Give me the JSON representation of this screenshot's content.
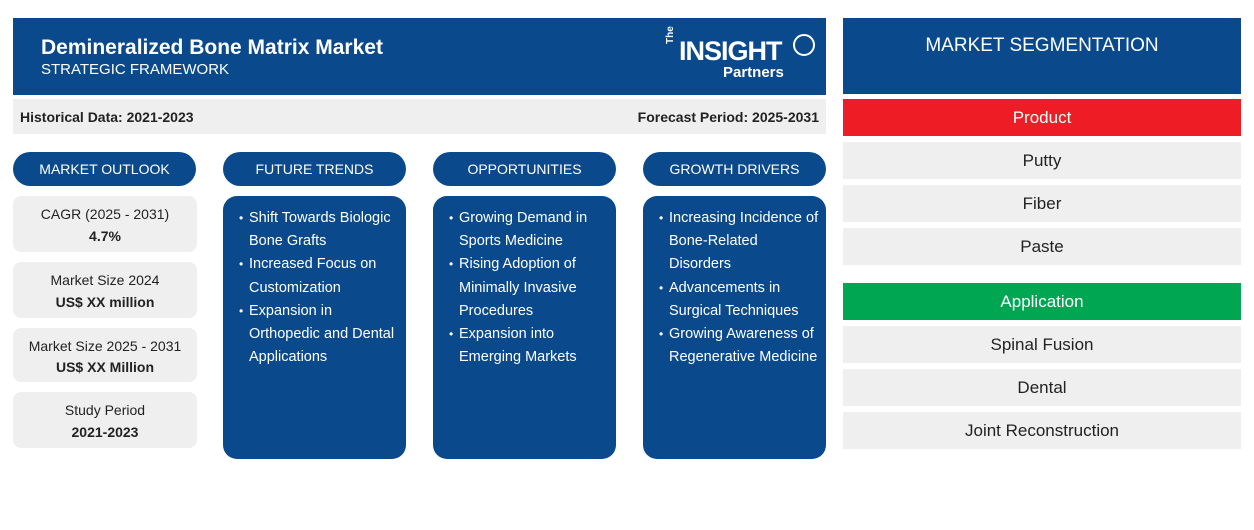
{
  "header": {
    "title": "Demineralized Bone Matrix Market",
    "subtitle": "STRATEGIC FRAMEWORK",
    "logo": {
      "the": "The",
      "insight": "INSIGHT",
      "partners": "Partners"
    }
  },
  "period": {
    "historical": "Historical Data: 2021-2023",
    "forecast": "Forecast Period: 2025-2031"
  },
  "columns": {
    "market_outlook": "MARKET OUTLOOK",
    "future_trends": "FUTURE TRENDS",
    "opportunities": "OPPORTUNITIES",
    "growth_drivers": "GROWTH DRIVERS"
  },
  "outlook": [
    {
      "label": "CAGR (2025 - 2031)",
      "value": "4.7%"
    },
    {
      "label": "Market Size 2024",
      "value": "US$ XX million"
    },
    {
      "label": "Market Size 2025 - 2031",
      "value": "US$ XX Million"
    },
    {
      "label": "Study Period",
      "value": "2021-2023"
    }
  ],
  "future_trends": [
    "Shift Towards Biologic Bone Grafts",
    "Increased Focus on Customization",
    "Expansion in Orthopedic and Dental Applications"
  ],
  "opportunities": [
    "Growing Demand in Sports Medicine",
    "Rising Adoption of Minimally Invasive Procedures",
    "Expansion into Emerging Markets"
  ],
  "growth_drivers": [
    "Increasing Incidence of Bone-Related Disorders",
    "Advancements in Surgical Techniques",
    "Growing Awareness of Regenerative Medicine"
  ],
  "segmentation": {
    "title": "MARKET SEGMENTATION",
    "product": {
      "label": "Product",
      "color": "#ee1c25",
      "items": [
        "Putty",
        "Fiber",
        "Paste"
      ]
    },
    "application": {
      "label": "Application",
      "color": "#00a651",
      "items": [
        "Spinal Fusion",
        "Dental",
        "Joint Reconstruction"
      ]
    }
  },
  "colors": {
    "navy": "#0a4a8c",
    "light_gray": "#efefef"
  }
}
